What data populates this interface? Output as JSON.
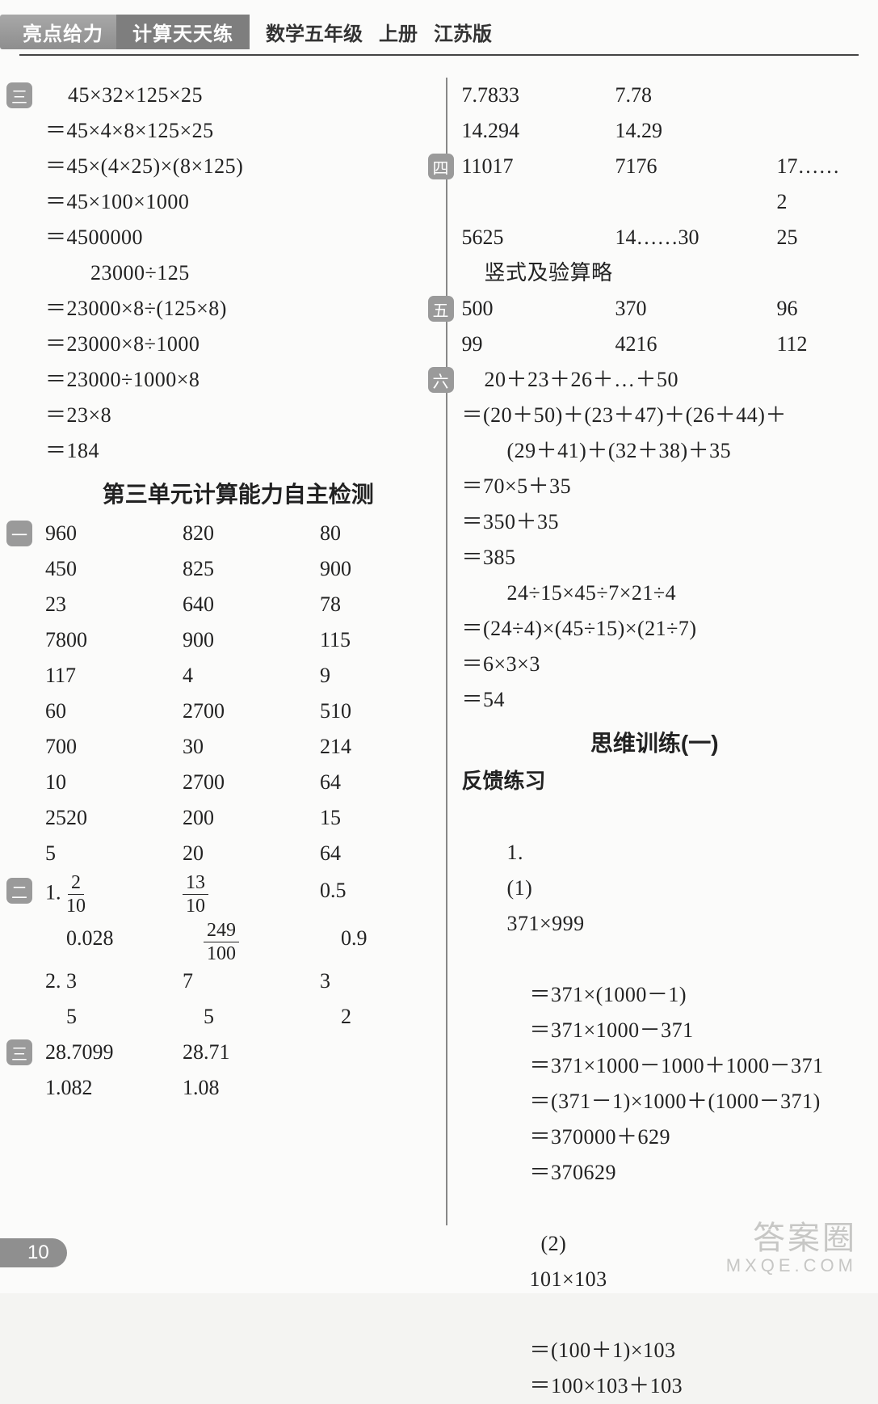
{
  "header": {
    "brand1": "亮点给力",
    "brand2": "计算天天练",
    "subject": "数学五年级",
    "volume": "上册",
    "edition": "江苏版"
  },
  "left": {
    "badge3": "三",
    "p3": {
      "l0": "45×32×125×25",
      "l1": "＝45×4×8×125×25",
      "l2": "＝45×(4×25)×(8×125)",
      "l3": "＝45×100×1000",
      "l4": "＝4500000",
      "l5": "23000÷125",
      "l6": "＝23000×8÷(125×8)",
      "l7": "＝23000×8÷1000",
      "l8": "＝23000÷1000×8",
      "l9": "＝23×8",
      "l10": "＝184"
    },
    "section_title": "第三单元计算能力自主检测",
    "badge1": "一",
    "grid1": [
      [
        "960",
        "820",
        "80"
      ],
      [
        "450",
        "825",
        "900"
      ],
      [
        "23",
        "640",
        "78"
      ],
      [
        "7800",
        "900",
        "115"
      ],
      [
        "117",
        "4",
        "9"
      ],
      [
        "60",
        "2700",
        "510"
      ],
      [
        "700",
        "30",
        "214"
      ],
      [
        "10",
        "2700",
        "64"
      ],
      [
        "2520",
        "200",
        "15"
      ],
      [
        "5",
        "20",
        "64"
      ]
    ],
    "badge2": "二",
    "two": {
      "row1_label": "1.",
      "row1": {
        "a_num": "2",
        "a_den": "10",
        "b_num": "13",
        "b_den": "10",
        "c": "0.5"
      },
      "row2": {
        "a": "0.028",
        "b_num": "249",
        "b_den": "100",
        "c": "0.9"
      },
      "row3_label": "2.",
      "row3": {
        "a": "3",
        "b": "7",
        "c": "3"
      },
      "row4": {
        "a": "5",
        "b": "5",
        "c": "2"
      }
    },
    "badge3b": "三",
    "grid3b": [
      [
        "28.7099",
        "28.71",
        ""
      ],
      [
        "1.082",
        "1.08",
        ""
      ]
    ]
  },
  "right": {
    "top_grid": [
      [
        "7.7833",
        "7.78",
        ""
      ],
      [
        "14.294",
        "14.29",
        ""
      ]
    ],
    "badge4": "四",
    "grid4": [
      [
        "11017",
        "7176",
        "17……2"
      ],
      [
        "5625",
        "14……30",
        "25"
      ]
    ],
    "note4": "竖式及验算略",
    "badge5": "五",
    "grid5": [
      [
        "500",
        "370",
        "96"
      ],
      [
        "99",
        "4216",
        "112"
      ]
    ],
    "badge6": "六",
    "p6": {
      "l0": "20＋23＋26＋…＋50",
      "l1": "＝(20＋50)＋(23＋47)＋(26＋44)＋",
      "l1b": "(29＋41)＋(32＋38)＋35",
      "l2": "＝70×5＋35",
      "l3": "＝350＋35",
      "l4": "＝385",
      "l5": "24÷15×45÷7×21÷4",
      "l6": "＝(24÷4)×(45÷15)×(21÷7)",
      "l7": "＝6×3×3",
      "l8": "＝54"
    },
    "section_title": "思维训练(一)",
    "feedback_label": "反馈练习",
    "q1": {
      "label": "1.",
      "sub1": "(1)",
      "l0": "371×999",
      "l1": "＝371×(1000－1)",
      "l2": "＝371×1000－371",
      "l3": "＝371×1000－1000＋1000－371",
      "l4": "＝(371－1)×1000＋(1000－371)",
      "l5": "＝370000＋629",
      "l6": "＝370629",
      "sub2": "(2)",
      "m0": "101×103",
      "m1": "＝(100＋1)×103",
      "m2": "＝100×103＋103"
    }
  },
  "footer": {
    "page_number": "10"
  },
  "watermark": {
    "line1": "答案圈",
    "line2": "MXQE.COM"
  }
}
